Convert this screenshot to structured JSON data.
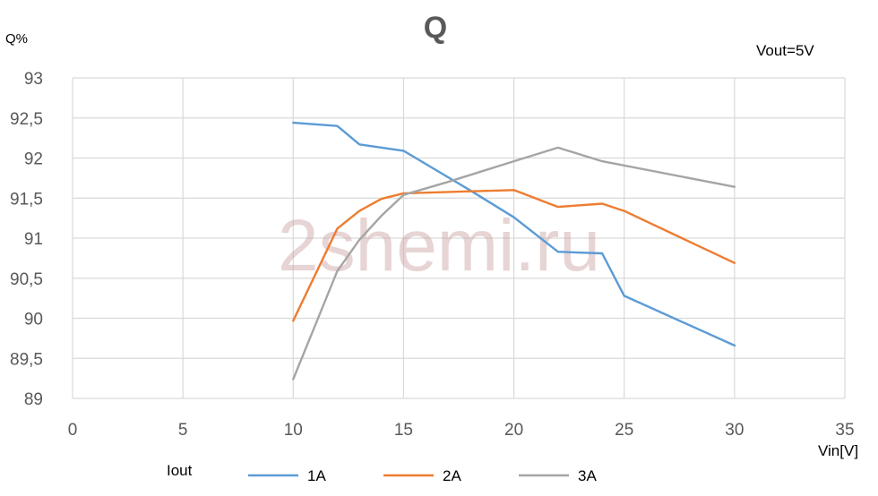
{
  "chart_data": {
    "type": "line",
    "title": "Q",
    "ylabel": "Q%",
    "xlabel": "Vin[V]",
    "annotation": "Vout=5V",
    "watermark": "2shemi.ru",
    "xlim": [
      0,
      35
    ],
    "ylim": [
      89,
      93
    ],
    "x_ticks": [
      0,
      5,
      10,
      15,
      20,
      25,
      30,
      35
    ],
    "y_ticks": [
      "89",
      "89,5",
      "90",
      "90,5",
      "91",
      "91,5",
      "92",
      "92,5",
      "93"
    ],
    "y_tick_values": [
      89,
      89.5,
      90,
      90.5,
      91,
      91.5,
      92,
      92.5,
      93
    ],
    "grid": true,
    "legend_title": "Iout",
    "legend_placement": "bottom",
    "series": [
      {
        "name": "1A",
        "color": "#5b9bd5",
        "points": [
          [
            10,
            92.44
          ],
          [
            12,
            92.4
          ],
          [
            13,
            92.17
          ],
          [
            15,
            92.09
          ],
          [
            18,
            91.6
          ],
          [
            20,
            91.26
          ],
          [
            22,
            90.83
          ],
          [
            24,
            90.81
          ],
          [
            25,
            90.28
          ],
          [
            30,
            89.66
          ]
        ]
      },
      {
        "name": "2A",
        "color": "#ed7d31",
        "points": [
          [
            10,
            89.97
          ],
          [
            12,
            91.12
          ],
          [
            13,
            91.34
          ],
          [
            14,
            91.49
          ],
          [
            15,
            91.56
          ],
          [
            20,
            91.6
          ],
          [
            22,
            91.39
          ],
          [
            24,
            91.43
          ],
          [
            25,
            91.34
          ],
          [
            30,
            90.69
          ]
        ]
      },
      {
        "name": "3A",
        "color": "#a5a5a5",
        "points": [
          [
            10,
            89.24
          ],
          [
            12,
            90.59
          ],
          [
            13,
            90.98
          ],
          [
            14,
            91.28
          ],
          [
            15,
            91.54
          ],
          [
            17,
            91.7
          ],
          [
            20,
            91.96
          ],
          [
            22,
            92.13
          ],
          [
            24,
            91.96
          ],
          [
            30,
            91.64
          ]
        ]
      }
    ]
  }
}
